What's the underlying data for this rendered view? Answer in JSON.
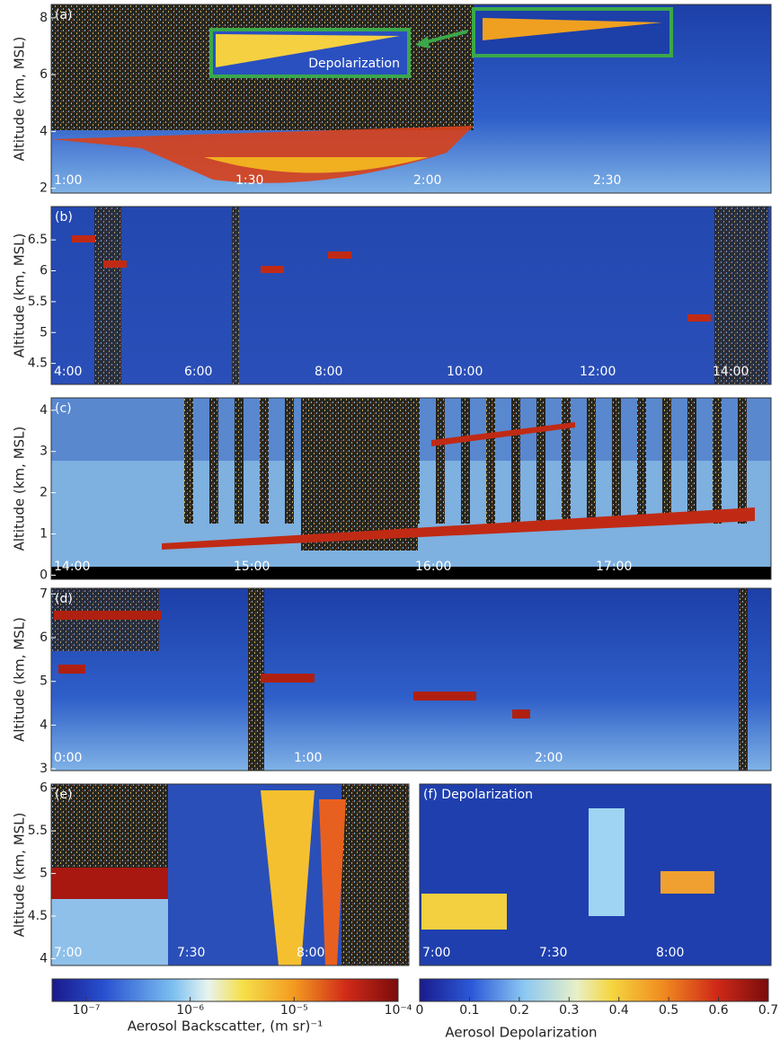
{
  "figure": {
    "panels": [
      {
        "label": "(a)",
        "ylabel": "Altitude  (km, MSL)",
        "ylim": [
          1.83,
          8.47
        ],
        "yticks": [
          2,
          4,
          6,
          8
        ],
        "times": [
          "1:00",
          "1:30",
          "2:00",
          "2:30"
        ],
        "annotation": "Depolarization"
      },
      {
        "label": "(b)",
        "ylabel": "Altitude  (km, MSL)",
        "ylim": [
          4.16,
          7.04
        ],
        "yticks": [
          4.5,
          5,
          5.5,
          6,
          6.5
        ],
        "times": [
          "4:00",
          "6:00",
          "8:00",
          "10:00",
          "12:00",
          "14:00"
        ]
      },
      {
        "label": "(c)",
        "ylabel": "Altitude  (km, MSL)",
        "ylim": [
          -0.1,
          4.3
        ],
        "yticks": [
          0,
          1,
          2,
          3,
          4
        ],
        "times": [
          "14:00",
          "15:00",
          "16:00",
          "17:00"
        ]
      },
      {
        "label": "(d)",
        "ylabel": "Altitude  (km, MSL)",
        "ylim": [
          2.96,
          7.13
        ],
        "yticks": [
          3,
          4,
          5,
          6,
          7
        ],
        "times": [
          "0:00",
          "1:00",
          "2:00"
        ]
      },
      {
        "label": "(e)",
        "ylabel": "Altitude  (km, MSL)",
        "ylim": [
          3.92,
          6.05
        ],
        "yticks": [
          4,
          4.5,
          5,
          5.5,
          6
        ],
        "times": [
          "7:00",
          "7:30",
          "8:00"
        ]
      },
      {
        "label": "(f) Depolarization",
        "times": [
          "7:00",
          "7:30",
          "8:00"
        ]
      }
    ],
    "colorbars": [
      {
        "label": "Aerosol Backscatter, (m sr)⁻¹",
        "log": true,
        "clim": [
          4.7e-08,
          0.0001
        ],
        "ticks": [
          {
            "value": 1e-07,
            "label": "10⁻⁷"
          },
          {
            "value": 1e-06,
            "label": "10⁻⁶"
          },
          {
            "value": 1e-05,
            "label": "10⁻⁵"
          },
          {
            "value": 0.0001,
            "label": "10⁻⁴"
          }
        ]
      },
      {
        "label": "Aerosol Depolarization",
        "log": false,
        "clim": [
          0,
          0.7
        ],
        "ticks": [
          0,
          0.1,
          0.2,
          0.3,
          0.4,
          0.5,
          0.6,
          0.7
        ]
      }
    ]
  }
}
